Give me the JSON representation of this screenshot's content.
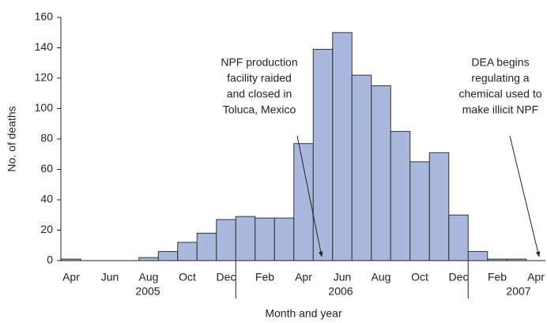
{
  "chart_data": {
    "type": "bar",
    "y_label": "No. of deaths",
    "x_label": "Month and year",
    "categories": [
      "Apr",
      null,
      "Jun",
      null,
      "Aug",
      null,
      "Oct",
      null,
      "Dec",
      null,
      "Feb",
      null,
      "Apr",
      null,
      "Jun",
      null,
      "Aug",
      null,
      "Oct",
      null,
      "Dec",
      null,
      "Feb",
      null,
      "Apr"
    ],
    "year_labels": [
      "2005",
      "2006",
      "2007"
    ],
    "values": [
      1,
      0,
      0,
      0,
      2,
      6,
      12,
      18,
      27,
      29,
      28,
      28,
      77,
      139,
      150,
      122,
      115,
      85,
      65,
      71,
      30,
      6,
      1,
      1,
      0
    ],
    "color": "#a9b8dc",
    "ylim": [
      0,
      160
    ],
    "yticks": [
      0,
      20,
      40,
      60,
      80,
      100,
      120,
      140,
      160
    ],
    "annotations": [
      {
        "lines": [
          "NPF production",
          "facility raided",
          "and closed in",
          "Toluca, Mexico"
        ]
      },
      {
        "lines": [
          "DEA begins",
          "regulating a",
          "chemical used to",
          "make illicit NPF"
        ]
      }
    ]
  }
}
